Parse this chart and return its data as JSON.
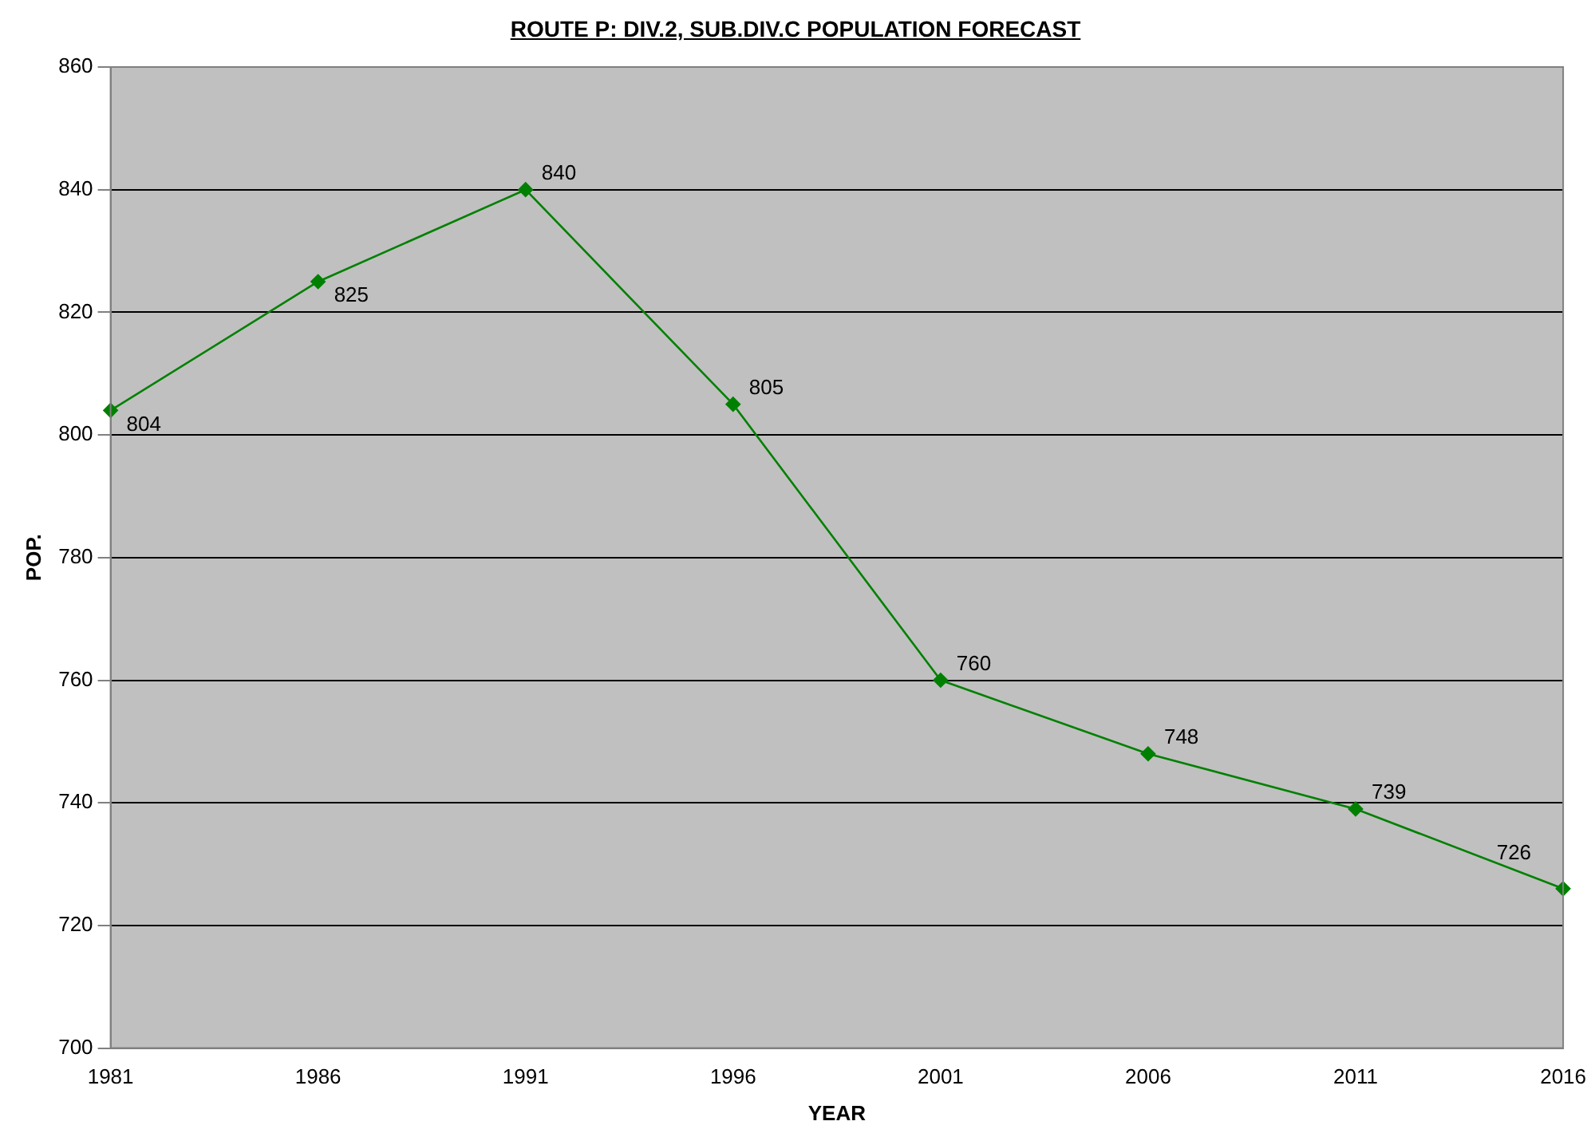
{
  "chart_data": {
    "type": "line",
    "title": "ROUTE P: DIV.2, SUB.DIV.C POPULATION FORECAST",
    "xlabel": "YEAR",
    "ylabel": "POP.",
    "categories": [
      "1981",
      "1986",
      "1991",
      "1996",
      "2001",
      "2006",
      "2011",
      "2016"
    ],
    "series": [
      {
        "color": "#008000",
        "values": [
          804,
          825,
          840,
          805,
          760,
          748,
          739,
          726
        ]
      }
    ],
    "ylim": [
      700,
      860
    ],
    "yticks": [
      700,
      720,
      740,
      760,
      780,
      800,
      820,
      840,
      860
    ],
    "grid": "y",
    "legend": false,
    "marker": "diamond",
    "line_style": "solid",
    "data_labels": true
  }
}
